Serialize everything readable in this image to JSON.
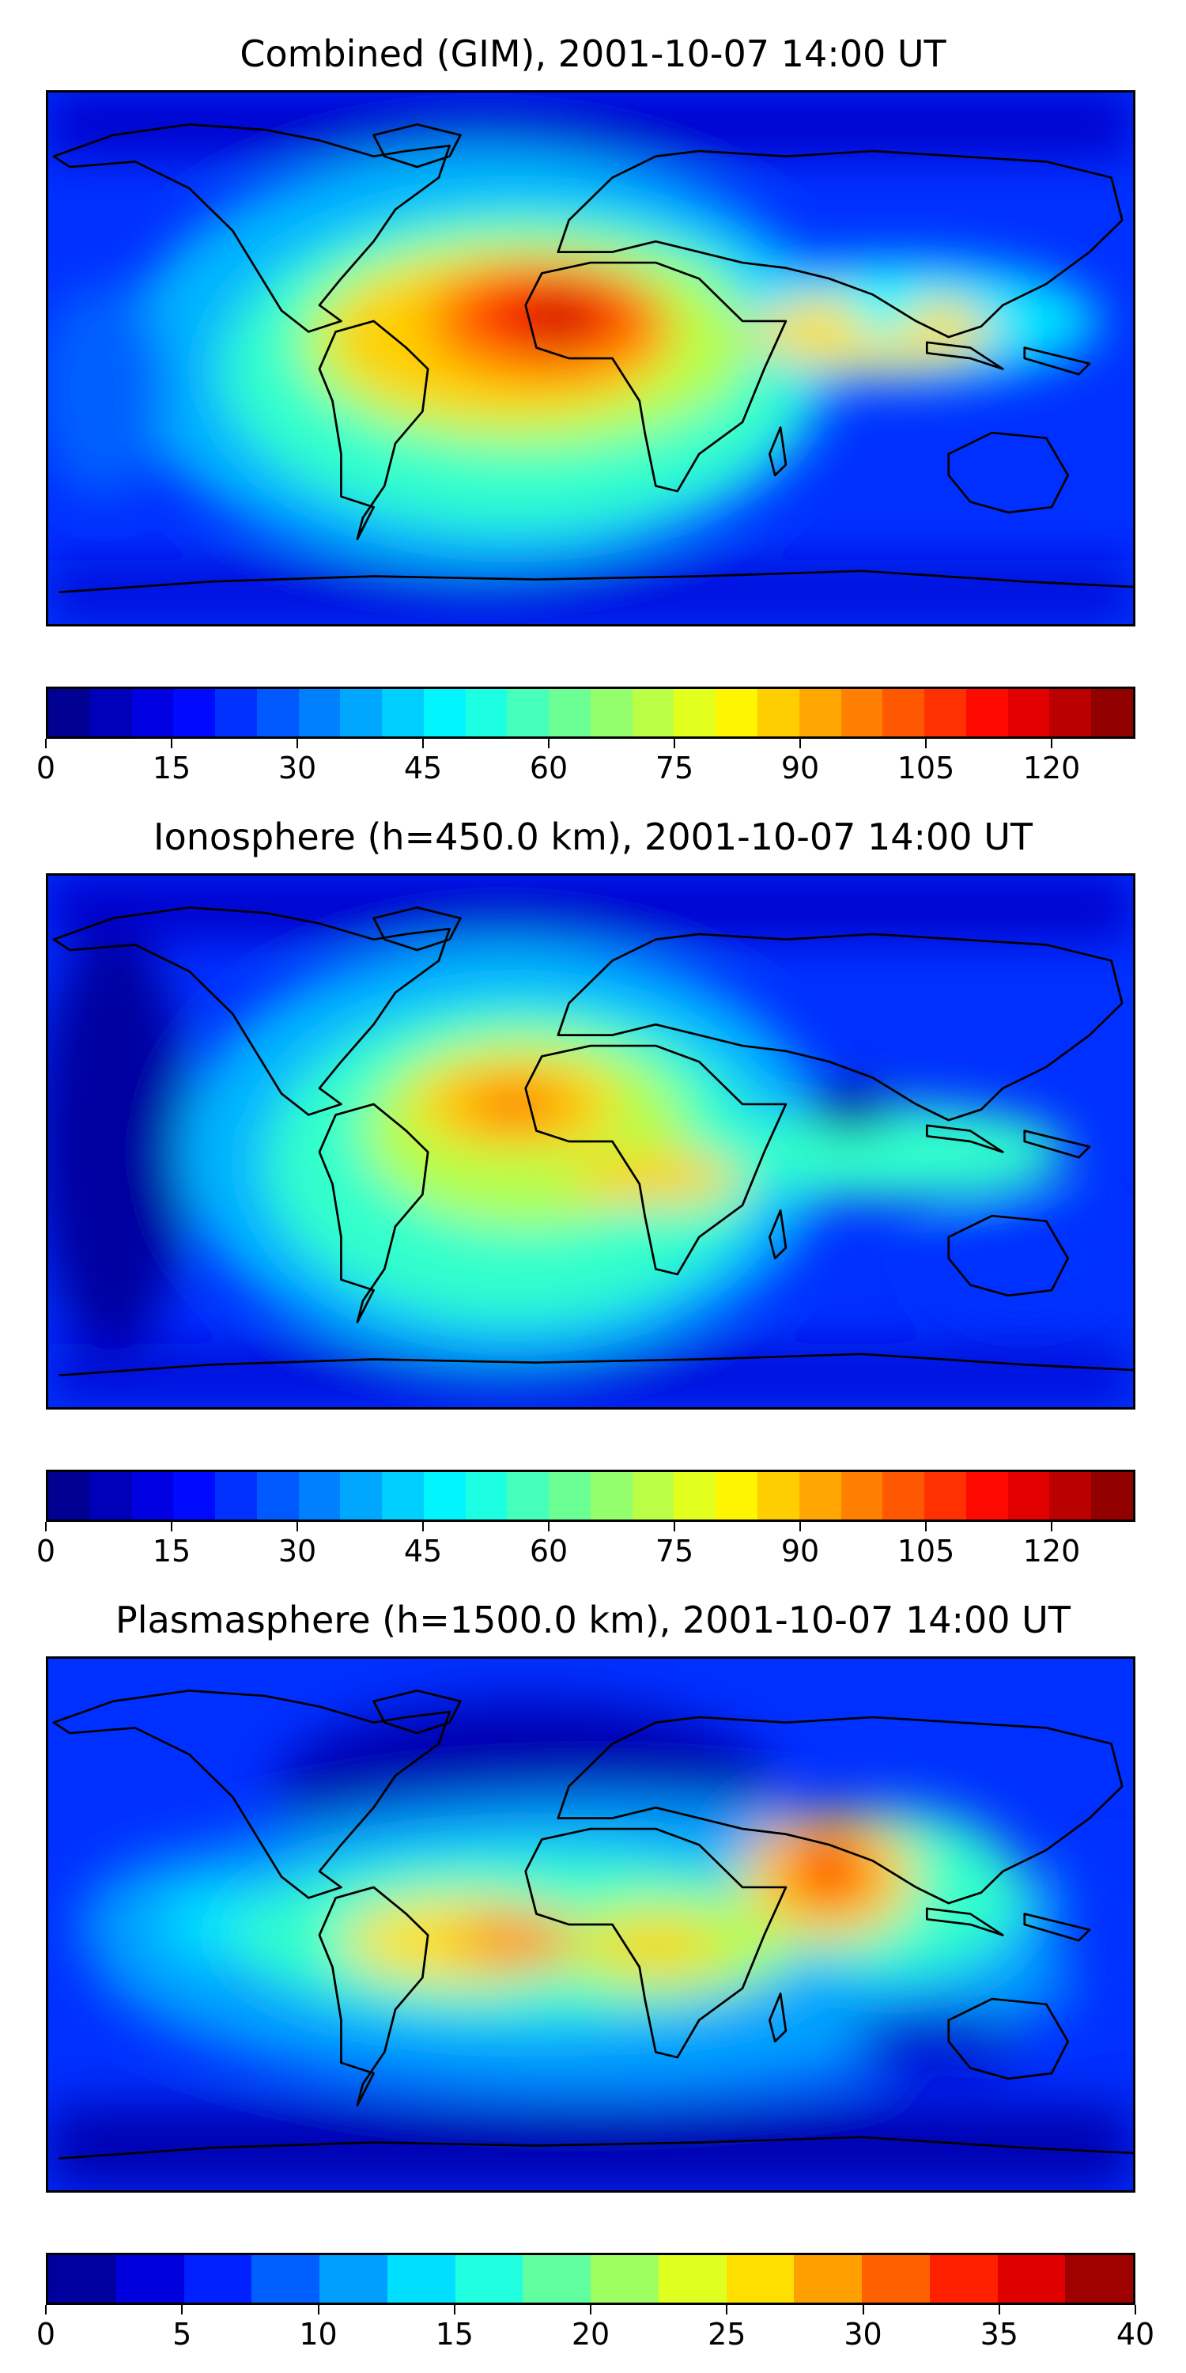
{
  "panels": [
    {
      "title": "Combined (GIM), 2001-10-07 14:00 UT",
      "colorbar": {
        "min": 0,
        "max": 130,
        "levels": 26,
        "ticks": [
          "0",
          "15",
          "30",
          "45",
          "60",
          "75",
          "90",
          "105",
          "120"
        ],
        "tick_values": [
          0,
          15,
          30,
          45,
          60,
          75,
          90,
          105,
          120
        ]
      }
    },
    {
      "title": "Ionosphere  (h=450.0 km), 2001-10-07 14:00 UT",
      "colorbar": {
        "min": 0,
        "max": 130,
        "levels": 26,
        "ticks": [
          "0",
          "15",
          "30",
          "45",
          "60",
          "75",
          "90",
          "105",
          "120"
        ],
        "tick_values": [
          0,
          15,
          30,
          45,
          60,
          75,
          90,
          105,
          120
        ]
      }
    },
    {
      "title": "Plasmasphere (h=1500.0 km), 2001-10-07 14:00 UT",
      "colorbar": {
        "min": 0,
        "max": 40,
        "levels": 16,
        "ticks": [
          "0",
          "5",
          "10",
          "15",
          "20",
          "25",
          "30",
          "35",
          "40"
        ],
        "tick_values": [
          0,
          5,
          10,
          15,
          20,
          25,
          30,
          35,
          40
        ]
      }
    }
  ],
  "colormap": "jet",
  "colors": {
    "land_outline": "#000000",
    "background": "#0000ff"
  }
}
